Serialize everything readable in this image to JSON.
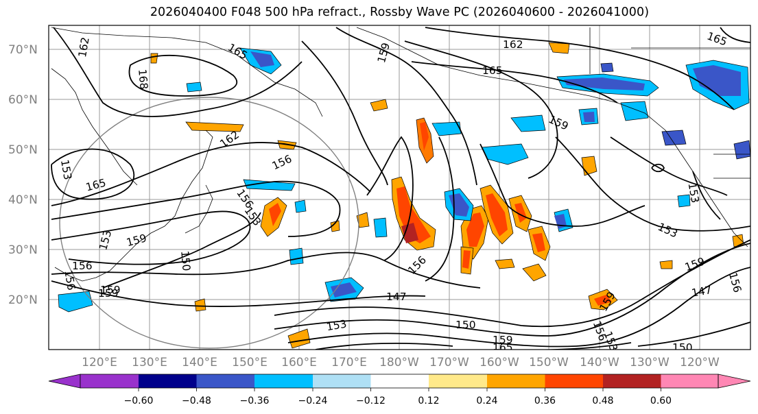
{
  "title": "2026040400 F048 500 hPa refract., Rossby Wave PC (2026040600 - 2026041000)",
  "latitude_labels": [
    "70°N",
    "60°N",
    "50°N",
    "40°N",
    "30°N",
    "20°N"
  ],
  "longitude_labels": [
    "120°E",
    "130°E",
    "140°E",
    "150°E",
    "160°E",
    "170°E",
    "180°W",
    "170°W",
    "160°W",
    "150°W",
    "140°W",
    "130°W",
    "120°W"
  ],
  "contour_labels": [
    "162",
    "165",
    "159",
    "162",
    "165",
    "168",
    "165",
    "162",
    "156",
    "159",
    "153",
    "156",
    "150",
    "159",
    "156",
    "153",
    "159",
    "156",
    "147",
    "150",
    "153",
    "159",
    "165",
    "159",
    "156",
    "153",
    "153",
    "159",
    "147",
    "150",
    "156",
    "153",
    "159",
    "156",
    "165",
    "153"
  ],
  "colorbar": {
    "ticks": [
      "−0.60",
      "−0.48",
      "−0.36",
      "−0.24",
      "−0.12",
      "0.12",
      "0.24",
      "0.36",
      "0.48",
      "0.60"
    ],
    "colors": [
      "#9932cc",
      "#00008b",
      "#3a56c8",
      "#00bfff",
      "#afe0f5",
      "#ffffff",
      "#ffe98a",
      "#ffa500",
      "#ff4500",
      "#b22222",
      "#ff87b4"
    ]
  },
  "legend_colors": {
    "contour": "#000000",
    "coast": "#000000",
    "grid": "#9a9a9a",
    "circle": "#808080"
  }
}
